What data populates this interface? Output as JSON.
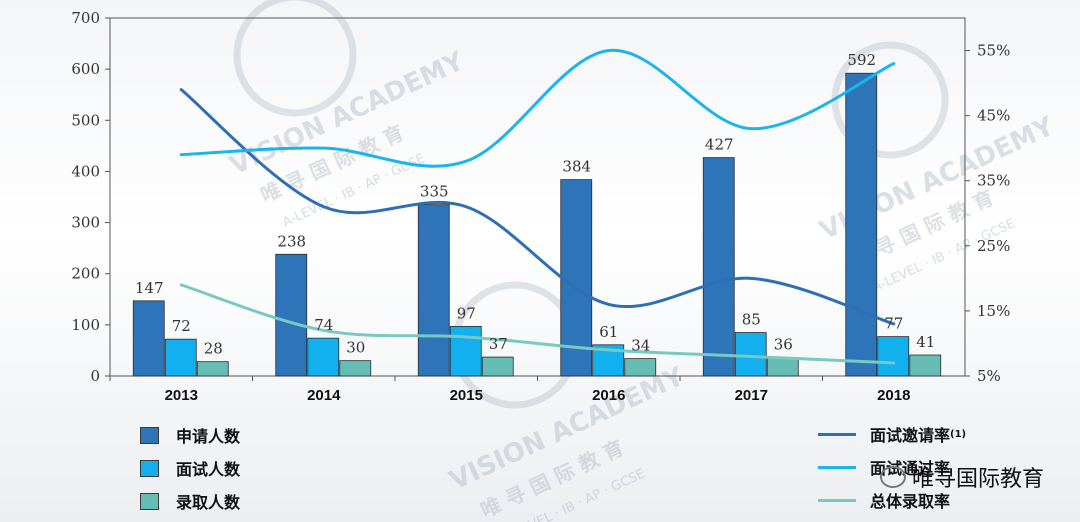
{
  "chart_data": {
    "type": "bar",
    "categories": [
      "2013",
      "2014",
      "2015",
      "2016",
      "2017",
      "2018"
    ],
    "ylim": [
      0,
      700
    ],
    "yticks": [
      "0",
      "100",
      "200",
      "300",
      "400",
      "500",
      "600",
      "700"
    ],
    "y2lim": [
      5,
      60
    ],
    "y2ticks": [
      "5%",
      "15%",
      "25%",
      "35%",
      "45%",
      "55%"
    ],
    "series": [
      {
        "name": "申请人数",
        "kind": "bar",
        "color": "#2e74b8",
        "values": [
          147,
          238,
          335,
          384,
          427,
          592
        ],
        "labels": [
          "147",
          "238",
          "335",
          "384",
          "427",
          "592"
        ]
      },
      {
        "name": "面试人数",
        "kind": "bar",
        "color": "#12b0ee",
        "values": [
          72,
          74,
          97,
          61,
          85,
          77
        ],
        "labels": [
          "72",
          "74",
          "97",
          "61",
          "85",
          "77"
        ]
      },
      {
        "name": "录取人数",
        "kind": "bar",
        "color": "#66bdb4",
        "values": [
          28,
          30,
          37,
          34,
          36,
          41
        ],
        "labels": [
          "28",
          "30",
          "37",
          "34",
          "36",
          "41"
        ]
      }
    ],
    "lines": [
      {
        "name": "面试邀请率",
        "sup": "(1)",
        "color": "#2e6fb4",
        "values": [
          49,
          31,
          31,
          16,
          20,
          13
        ]
      },
      {
        "name": "面试通过率",
        "color": "#1cb4ec",
        "values": [
          39,
          40,
          38,
          55,
          43,
          53
        ]
      },
      {
        "name": "总体录取率",
        "color": "#78c9c1",
        "values": [
          19,
          12,
          11,
          9,
          8,
          7
        ]
      }
    ]
  },
  "watermark": {
    "brand": "VISION ACADEMY",
    "cn": "唯 寻 国 际 教 育",
    "sub": "A-LEVEL · IB · AP · GCSE"
  },
  "footer_brand": "唯寻国际教育"
}
